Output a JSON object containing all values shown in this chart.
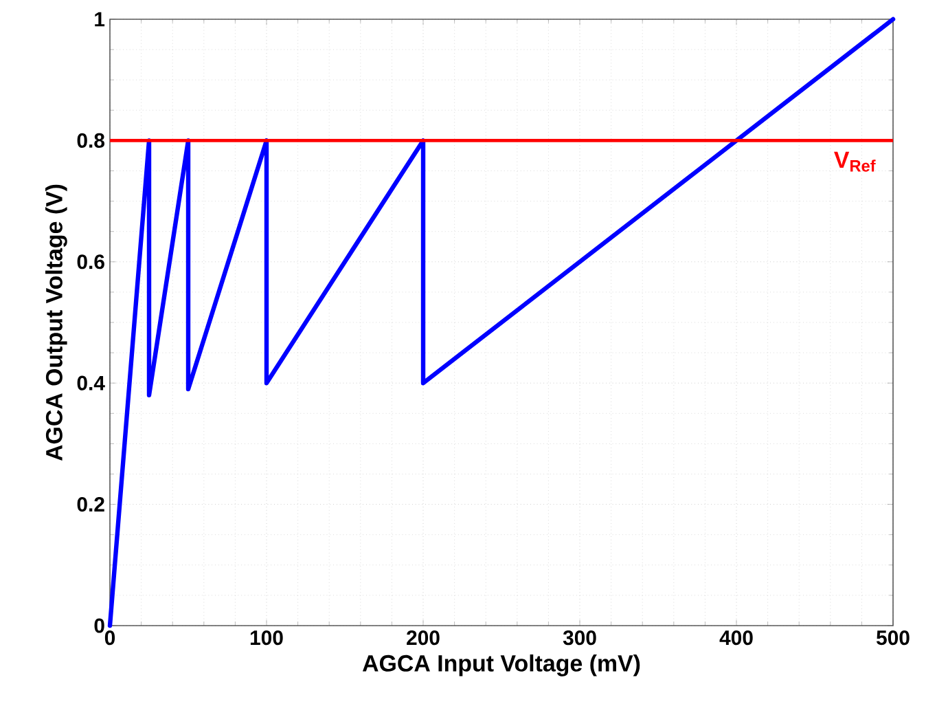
{
  "chart_data": {
    "type": "line",
    "xlabel": "AGCA Input Voltage (mV)",
    "ylabel": "AGCA Output Voltage (V)",
    "x": [
      0,
      25,
      25,
      50,
      50,
      100,
      100,
      200,
      200,
      500
    ],
    "series": [
      {
        "color": "#0000ff",
        "values": [
          0,
          0.8,
          0.38,
          0.8,
          0.39,
          0.8,
          0.4,
          0.8,
          0.4,
          1.0
        ]
      }
    ],
    "xlim": [
      0,
      500
    ],
    "xticks": [
      0,
      100,
      200,
      300,
      400,
      500
    ],
    "ylim": [
      0,
      1
    ],
    "yticks": [
      0,
      0.2,
      0.4,
      0.6,
      0.8,
      1
    ],
    "grid": true,
    "ref_lines": [
      {
        "axis": "y",
        "value": 0.8,
        "label": "V$_{Ref}$",
        "color": "#ff0000"
      }
    ]
  }
}
